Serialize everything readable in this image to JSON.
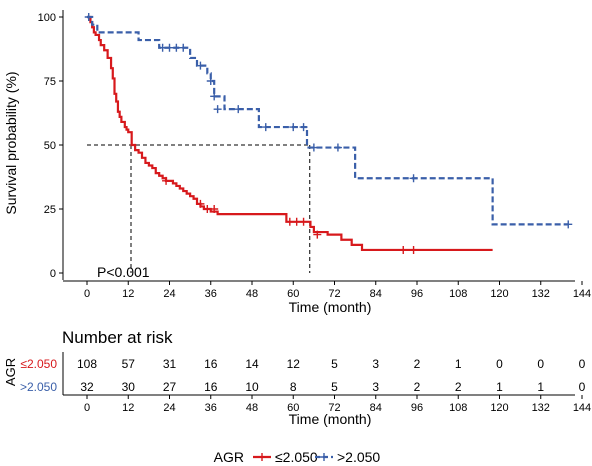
{
  "chart_data": {
    "type": "line",
    "subtype": "kaplan-meier",
    "ylabel": "Survival probability (%)",
    "xlabel": "Time (month)",
    "xlim": [
      0,
      144
    ],
    "ylim": [
      0,
      100
    ],
    "xticks": [
      0,
      12,
      24,
      36,
      48,
      60,
      72,
      84,
      96,
      108,
      120,
      132,
      144
    ],
    "yticks": [
      0,
      25,
      50,
      75,
      100
    ],
    "grid": false,
    "pvalue_text": "P<0.001",
    "median_reference": {
      "y": 50,
      "x_values": [
        12.8,
        64.8
      ]
    },
    "series": [
      {
        "name": "≤2.050",
        "color": "#d7191c",
        "dash": "solid",
        "steps": [
          [
            0,
            100
          ],
          [
            1,
            98
          ],
          [
            1.5,
            96
          ],
          [
            2,
            94
          ],
          [
            2.5,
            93
          ],
          [
            3.5,
            91
          ],
          [
            4,
            89
          ],
          [
            5,
            87
          ],
          [
            6,
            84
          ],
          [
            7,
            80
          ],
          [
            7.5,
            76
          ],
          [
            8,
            70
          ],
          [
            8.5,
            67
          ],
          [
            9,
            63
          ],
          [
            9.5,
            61
          ],
          [
            10,
            59
          ],
          [
            11,
            57
          ],
          [
            11.5,
            56
          ],
          [
            12,
            55
          ],
          [
            13,
            50
          ],
          [
            14,
            48
          ],
          [
            15,
            47
          ],
          [
            16,
            45
          ],
          [
            17,
            43
          ],
          [
            18,
            42
          ],
          [
            19,
            41
          ],
          [
            20,
            39
          ],
          [
            21,
            38
          ],
          [
            22,
            37
          ],
          [
            23,
            36
          ],
          [
            25,
            35
          ],
          [
            26,
            34
          ],
          [
            27,
            33
          ],
          [
            28,
            32
          ],
          [
            29,
            31
          ],
          [
            30,
            30
          ],
          [
            31,
            29
          ],
          [
            32,
            27
          ],
          [
            33,
            26
          ],
          [
            34,
            25
          ],
          [
            36,
            24
          ],
          [
            38,
            23
          ],
          [
            48,
            23
          ],
          [
            58,
            20
          ],
          [
            65,
            18
          ],
          [
            66,
            16
          ],
          [
            70,
            15
          ],
          [
            74,
            13
          ],
          [
            77,
            11
          ],
          [
            80,
            9
          ],
          [
            118,
            9
          ]
        ],
        "censored": [
          [
            23,
            36
          ],
          [
            33,
            27
          ],
          [
            35,
            25
          ],
          [
            37,
            25
          ],
          [
            59,
            20
          ],
          [
            61,
            20
          ],
          [
            63,
            20
          ],
          [
            67,
            15
          ],
          [
            92,
            9
          ],
          [
            95,
            9
          ]
        ]
      },
      {
        "name": ">2.050",
        "color": "#3a5fa9",
        "dash": "dashed",
        "steps": [
          [
            0,
            100
          ],
          [
            1.5,
            97
          ],
          [
            3,
            94
          ],
          [
            14,
            94
          ],
          [
            15,
            91
          ],
          [
            21,
            88
          ],
          [
            30,
            84
          ],
          [
            32,
            81
          ],
          [
            35,
            78
          ],
          [
            36,
            75
          ],
          [
            37,
            69
          ],
          [
            40,
            64
          ],
          [
            50,
            57
          ],
          [
            64,
            49
          ],
          [
            69,
            49
          ],
          [
            78,
            37
          ],
          [
            118,
            19
          ],
          [
            140,
            19
          ]
        ],
        "censored": [
          [
            0.5,
            100
          ],
          [
            22,
            88
          ],
          [
            24,
            88
          ],
          [
            26,
            88
          ],
          [
            28,
            88
          ],
          [
            33,
            81
          ],
          [
            36,
            75
          ],
          [
            37,
            69
          ],
          [
            38,
            64
          ],
          [
            44,
            64
          ],
          [
            52,
            57
          ],
          [
            60,
            57
          ],
          [
            63,
            57
          ],
          [
            66,
            49
          ],
          [
            73,
            49
          ],
          [
            95,
            37
          ],
          [
            140,
            19
          ]
        ]
      }
    ]
  },
  "risk_table": {
    "title": "Number at risk",
    "group_label": "AGR",
    "xlabel": "Time (month)",
    "times": [
      0,
      12,
      24,
      36,
      48,
      60,
      72,
      84,
      96,
      108,
      120,
      132,
      144
    ],
    "rows": [
      {
        "name": "≤2.050",
        "color": "#d7191c",
        "counts": [
          "108",
          "57",
          "31",
          "16",
          "14",
          "12",
          "5",
          "3",
          "2",
          "1",
          "0",
          "0",
          "0"
        ]
      },
      {
        "name": ">2.050",
        "color": "#3a5fa9",
        "counts": [
          "32",
          "30",
          "27",
          "16",
          "10",
          "8",
          "5",
          "3",
          "2",
          "2",
          "1",
          "1",
          "0"
        ]
      }
    ]
  },
  "legend": {
    "title": "AGR",
    "items": [
      {
        "label": "≤2.050",
        "color": "#d7191c",
        "dash": "solid"
      },
      {
        "label": ">2.050",
        "color": "#3a5fa9",
        "dash": "dashed"
      }
    ]
  }
}
